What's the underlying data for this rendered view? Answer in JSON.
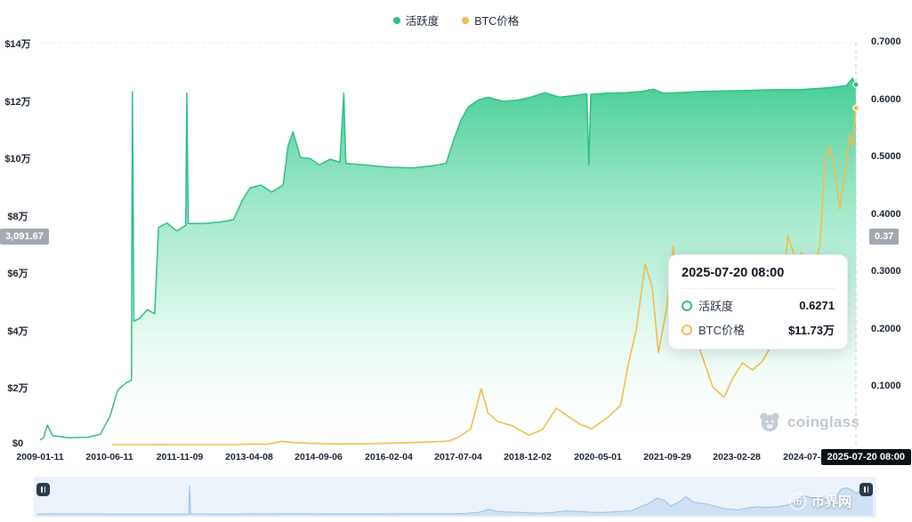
{
  "legend": {
    "items": [
      {
        "label": "活跃度",
        "color": "#2EBD85"
      },
      {
        "label": "BTC价格",
        "color": "#F0BE4C"
      }
    ]
  },
  "axes": {
    "left": [
      "$14万",
      "$12万",
      "$10万",
      "$8万",
      "$6万",
      "$4万",
      "$2万",
      "$0"
    ],
    "right": [
      "0.7000",
      "0.6000",
      "0.5000",
      "0.4000",
      "0.3000",
      "0.2000",
      "0.1000"
    ],
    "x": [
      "2009-01-11",
      "2010-06-11",
      "2011-11-09",
      "2013-04-08",
      "2014-09-06",
      "2016-02-04",
      "2017-07-04",
      "2018-12-02",
      "2020-05-01",
      "2021-09-29",
      "2023-02-28",
      "2024-07-28"
    ]
  },
  "badges": {
    "left_value": "3,091.67",
    "right_value": "0.37",
    "current_date": "2025-07-20 08:00"
  },
  "tooltip": {
    "title": "2025-07-20 08:00",
    "rows": [
      {
        "label": "活跃度",
        "value": "0.6271",
        "color": "#2EBD85"
      },
      {
        "label": "BTC价格",
        "value": "$11.73万",
        "color": "#F0BE4C"
      }
    ]
  },
  "watermarks": {
    "coinglass": "coinglass",
    "bjw": "币界网",
    "bjw_icon": "币"
  },
  "chart_data": {
    "type": "area",
    "title": "",
    "x_range": [
      2009.03,
      2025.547
    ],
    "left_axis": {
      "unit": "$万",
      "min": 0,
      "max": 14,
      "ticks": [
        0,
        2,
        4,
        6,
        8,
        10,
        12,
        14
      ]
    },
    "right_axis": {
      "min": 0,
      "max": 0.7,
      "ticks": [
        0.1,
        0.2,
        0.3,
        0.4,
        0.5,
        0.6,
        0.7
      ]
    },
    "current": {
      "date": "2025-07-20 08:00",
      "activity": 0.6271,
      "btc_price_wan": 11.73
    },
    "navigator": {
      "max": 12,
      "spike": [
        [
          2012.02,
          0.05
        ],
        [
          2012.04,
          11.2
        ],
        [
          2012.06,
          0.05
        ]
      ]
    },
    "series": [
      {
        "name": "活跃度",
        "type": "area",
        "axis": "right",
        "color": "#2EBD85",
        "points": [
          [
            2009.03,
            0.008
          ],
          [
            2009.1,
            0.012
          ],
          [
            2009.18,
            0.034
          ],
          [
            2009.28,
            0.016
          ],
          [
            2009.6,
            0.012
          ],
          [
            2010.0,
            0.013
          ],
          [
            2010.25,
            0.018
          ],
          [
            2010.45,
            0.05
          ],
          [
            2010.6,
            0.095
          ],
          [
            2010.78,
            0.108
          ],
          [
            2010.88,
            0.112
          ],
          [
            2010.9,
            0.615
          ],
          [
            2010.93,
            0.215
          ],
          [
            2011.05,
            0.22
          ],
          [
            2011.2,
            0.235
          ],
          [
            2011.35,
            0.228
          ],
          [
            2011.43,
            0.378
          ],
          [
            2011.6,
            0.386
          ],
          [
            2011.8,
            0.372
          ],
          [
            2011.98,
            0.382
          ],
          [
            2012.0,
            0.612
          ],
          [
            2012.03,
            0.385
          ],
          [
            2012.35,
            0.385
          ],
          [
            2012.7,
            0.388
          ],
          [
            2012.95,
            0.392
          ],
          [
            2013.12,
            0.425
          ],
          [
            2013.28,
            0.447
          ],
          [
            2013.5,
            0.452
          ],
          [
            2013.72,
            0.44
          ],
          [
            2013.95,
            0.452
          ],
          [
            2014.05,
            0.52
          ],
          [
            2014.15,
            0.545
          ],
          [
            2014.3,
            0.5
          ],
          [
            2014.5,
            0.498
          ],
          [
            2014.68,
            0.487
          ],
          [
            2014.9,
            0.497
          ],
          [
            2015.1,
            0.492
          ],
          [
            2015.18,
            0.612
          ],
          [
            2015.22,
            0.49
          ],
          [
            2015.6,
            0.487
          ],
          [
            2016.1,
            0.483
          ],
          [
            2016.6,
            0.482
          ],
          [
            2017.0,
            0.486
          ],
          [
            2017.25,
            0.49
          ],
          [
            2017.4,
            0.53
          ],
          [
            2017.55,
            0.565
          ],
          [
            2017.7,
            0.588
          ],
          [
            2017.9,
            0.6
          ],
          [
            2018.1,
            0.605
          ],
          [
            2018.4,
            0.598
          ],
          [
            2018.7,
            0.6
          ],
          [
            2019.0,
            0.606
          ],
          [
            2019.25,
            0.613
          ],
          [
            2019.55,
            0.605
          ],
          [
            2019.85,
            0.608
          ],
          [
            2020.1,
            0.611
          ],
          [
            2020.14,
            0.488
          ],
          [
            2020.18,
            0.61
          ],
          [
            2020.5,
            0.612
          ],
          [
            2020.9,
            0.613
          ],
          [
            2021.2,
            0.615
          ],
          [
            2021.45,
            0.619
          ],
          [
            2021.65,
            0.612
          ],
          [
            2021.95,
            0.613
          ],
          [
            2022.4,
            0.615
          ],
          [
            2022.9,
            0.616
          ],
          [
            2023.4,
            0.617
          ],
          [
            2023.9,
            0.618
          ],
          [
            2024.4,
            0.618
          ],
          [
            2024.9,
            0.621
          ],
          [
            2025.15,
            0.623
          ],
          [
            2025.35,
            0.625
          ],
          [
            2025.48,
            0.638
          ],
          [
            2025.52,
            0.628
          ],
          [
            2025.547,
            0.6271
          ]
        ]
      },
      {
        "name": "BTC价格",
        "type": "line",
        "axis": "left",
        "color": "#F0BE4C",
        "unit": "万",
        "points": [
          [
            2010.5,
            0.0002
          ],
          [
            2011.0,
            0.0003
          ],
          [
            2011.45,
            0.003
          ],
          [
            2011.9,
            0.0004
          ],
          [
            2012.5,
            0.001
          ],
          [
            2013.0,
            0.0013
          ],
          [
            2013.3,
            0.023
          ],
          [
            2013.6,
            0.01
          ],
          [
            2013.92,
            0.115
          ],
          [
            2014.1,
            0.085
          ],
          [
            2014.5,
            0.05
          ],
          [
            2015.0,
            0.025
          ],
          [
            2015.6,
            0.028
          ],
          [
            2016.0,
            0.043
          ],
          [
            2016.5,
            0.068
          ],
          [
            2016.95,
            0.096
          ],
          [
            2017.3,
            0.12
          ],
          [
            2017.5,
            0.25
          ],
          [
            2017.75,
            0.55
          ],
          [
            2017.96,
            1.95
          ],
          [
            2018.1,
            1.1
          ],
          [
            2018.3,
            0.8
          ],
          [
            2018.6,
            0.65
          ],
          [
            2018.92,
            0.33
          ],
          [
            2019.2,
            0.52
          ],
          [
            2019.48,
            1.27
          ],
          [
            2019.75,
            0.95
          ],
          [
            2019.95,
            0.72
          ],
          [
            2020.2,
            0.55
          ],
          [
            2020.5,
            0.92
          ],
          [
            2020.78,
            1.35
          ],
          [
            2020.95,
            2.9
          ],
          [
            2021.1,
            4.0
          ],
          [
            2021.28,
            6.3
          ],
          [
            2021.42,
            5.5
          ],
          [
            2021.55,
            3.2
          ],
          [
            2021.72,
            4.8
          ],
          [
            2021.85,
            6.9
          ],
          [
            2022.0,
            4.7
          ],
          [
            2022.25,
            4.0
          ],
          [
            2022.45,
            3.0
          ],
          [
            2022.65,
            2.0
          ],
          [
            2022.88,
            1.65
          ],
          [
            2023.05,
            2.3
          ],
          [
            2023.25,
            2.85
          ],
          [
            2023.45,
            2.6
          ],
          [
            2023.65,
            2.9
          ],
          [
            2023.85,
            3.5
          ],
          [
            2024.0,
            4.4
          ],
          [
            2024.17,
            7.3
          ],
          [
            2024.33,
            6.4
          ],
          [
            2024.45,
            6.7
          ],
          [
            2024.6,
            5.8
          ],
          [
            2024.72,
            6.4
          ],
          [
            2024.82,
            6.9
          ],
          [
            2024.92,
            9.9
          ],
          [
            2025.02,
            10.4
          ],
          [
            2025.12,
            9.6
          ],
          [
            2025.22,
            8.2
          ],
          [
            2025.32,
            9.4
          ],
          [
            2025.42,
            10.8
          ],
          [
            2025.48,
            10.4
          ],
          [
            2025.547,
            11.73
          ]
        ]
      }
    ]
  }
}
